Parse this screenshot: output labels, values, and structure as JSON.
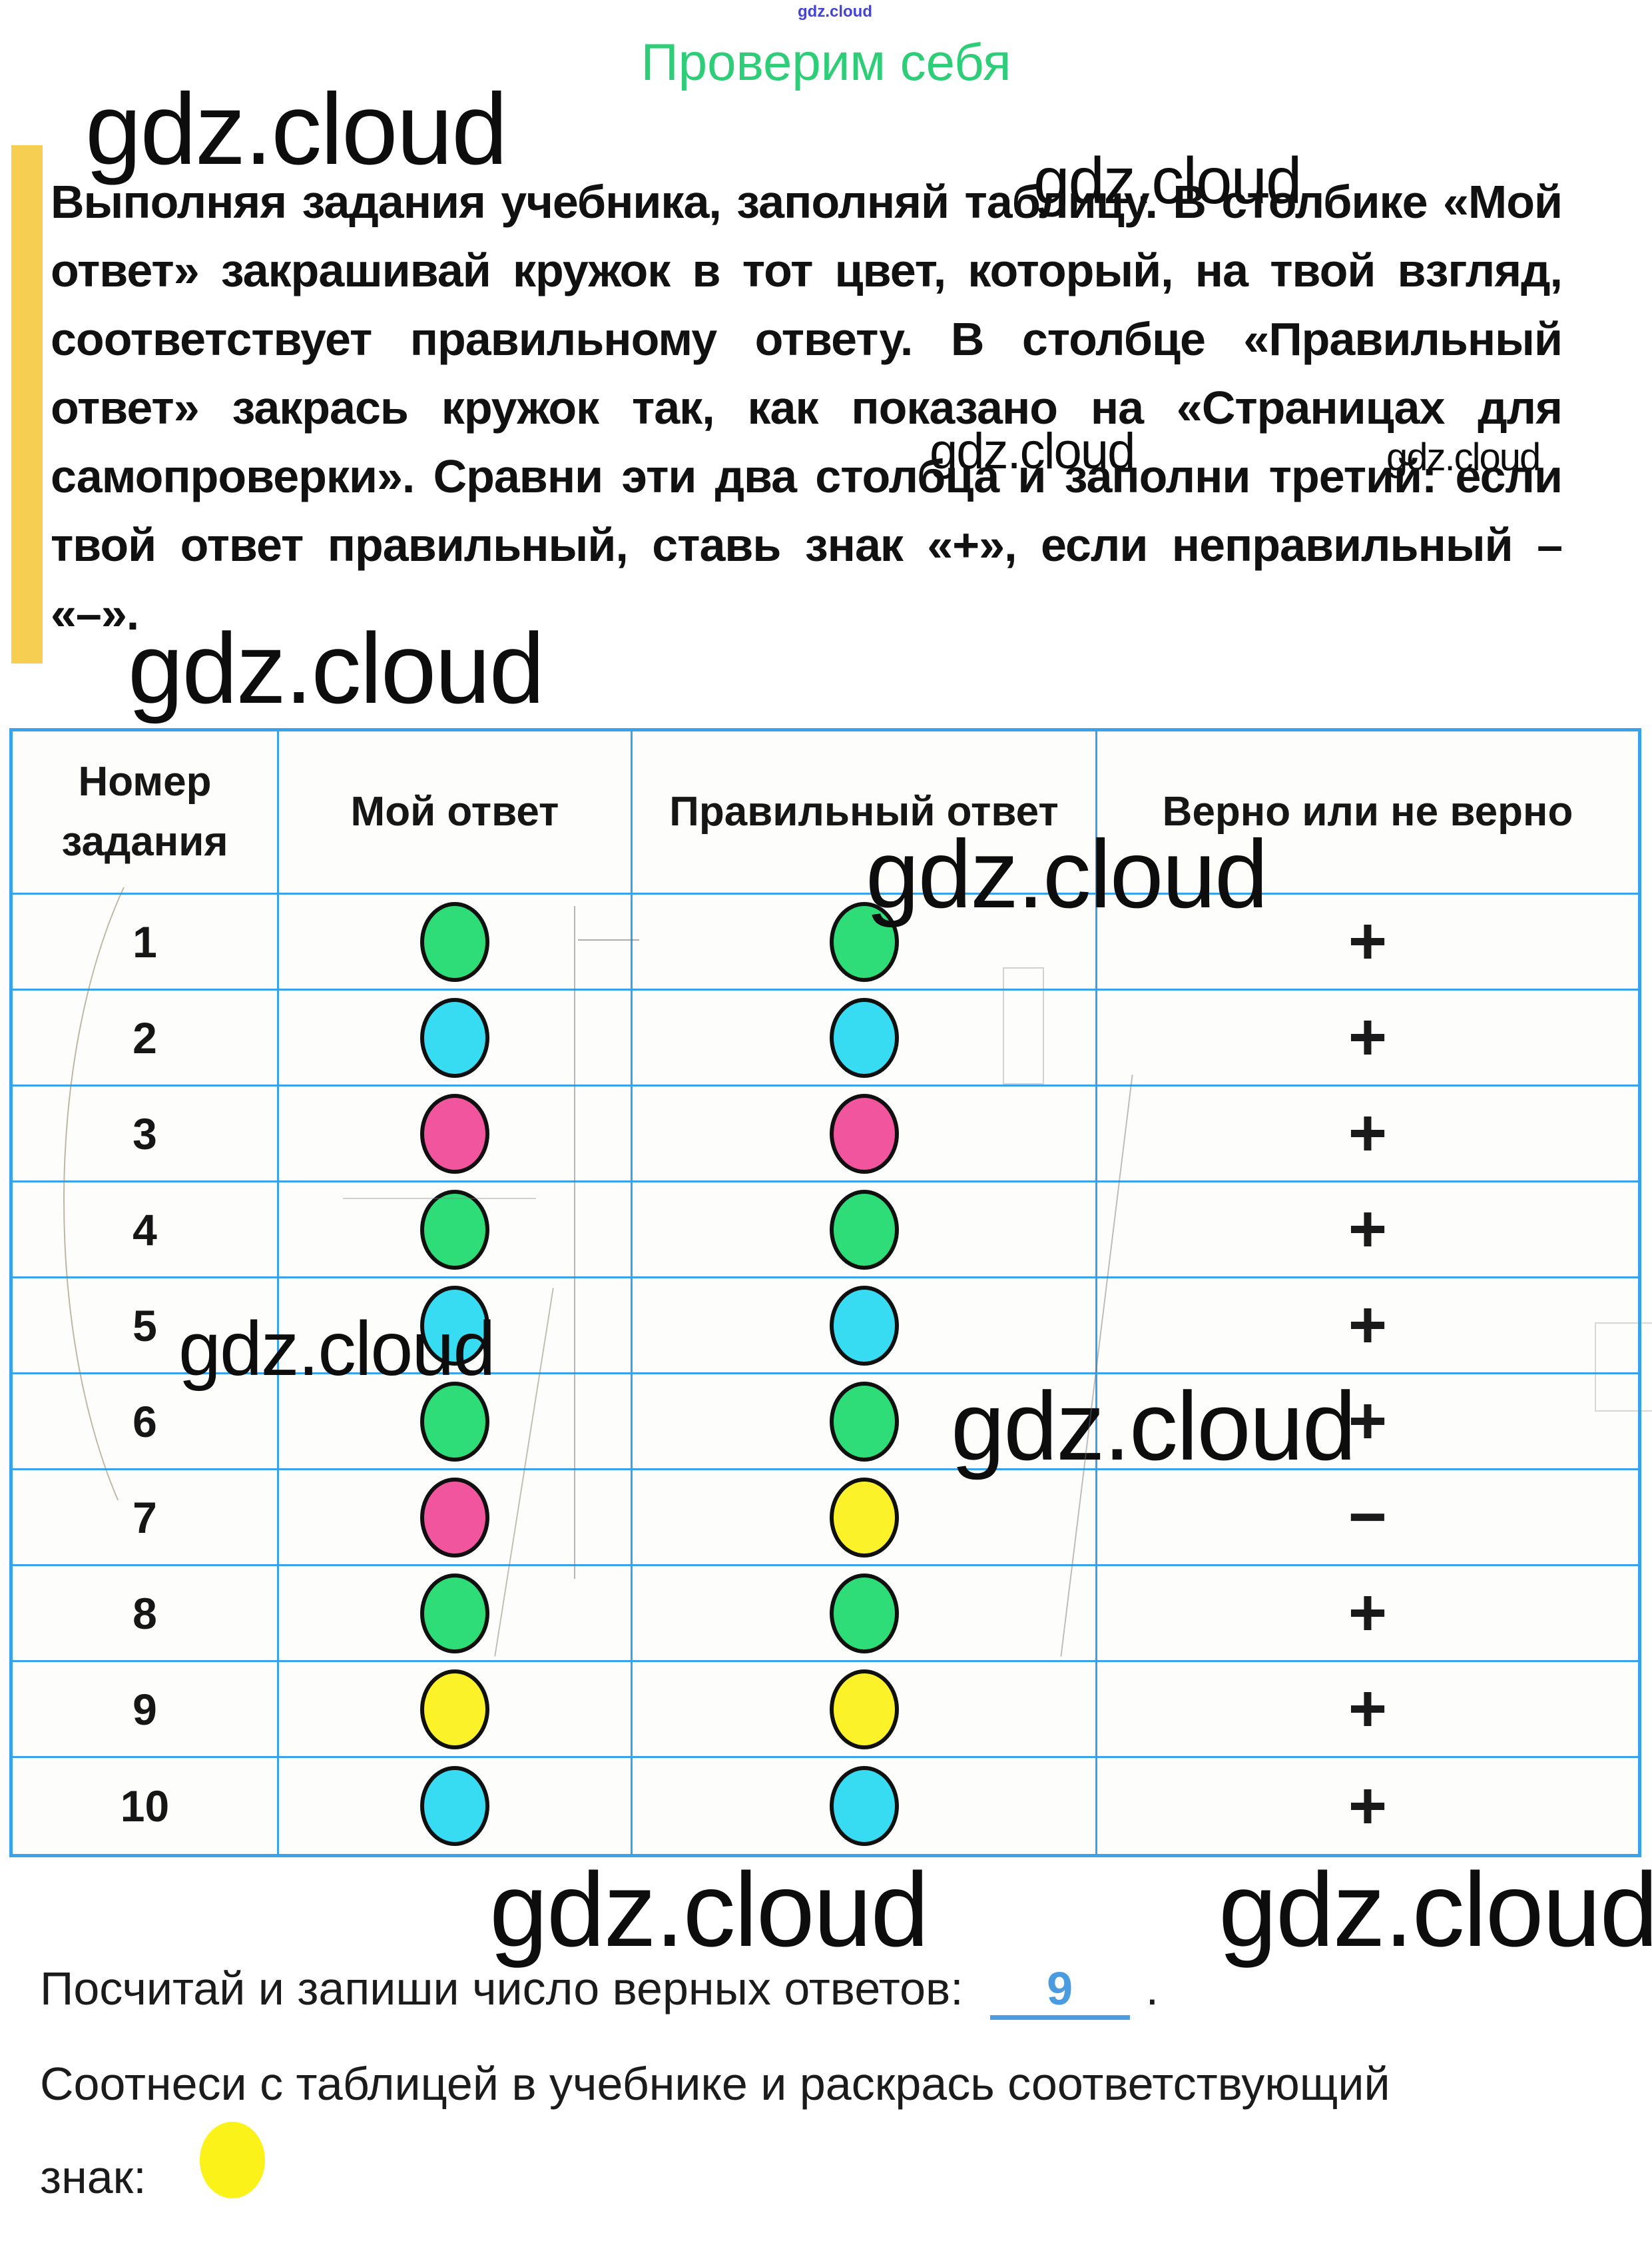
{
  "watermarks": {
    "brand": "gdz.cloud"
  },
  "title": "Проверим себя",
  "intro": {
    "lines": [
      "Выполняя задания учебника, заполняй таблицу. В столбике «Мой",
      "ответ» закрашивай кружок в тот цвет, который, на твой взгляд,",
      "соответствует правильному ответу. В столбце «Правильный",
      "ответ» закрась кружок так, как показано на «Страницах для",
      "самопроверки». Сравни эти два столбца и заполни третий: если",
      "твой ответ правильный, ставь знак «+», если неправильный – знак",
      "«–»."
    ]
  },
  "table": {
    "headers": {
      "col1": "Номер задания",
      "col2": "Мой ответ",
      "col3": "Правильный ответ",
      "col4": "Верно или не верно"
    },
    "rows": [
      {
        "num": "1",
        "my": "green",
        "correct": "green",
        "sign": "+"
      },
      {
        "num": "2",
        "my": "cyan",
        "correct": "cyan",
        "sign": "+"
      },
      {
        "num": "3",
        "my": "pink",
        "correct": "pink",
        "sign": "+"
      },
      {
        "num": "4",
        "my": "green",
        "correct": "green",
        "sign": "+"
      },
      {
        "num": "5",
        "my": "cyan",
        "correct": "cyan",
        "sign": "+"
      },
      {
        "num": "6",
        "my": "green",
        "correct": "green",
        "sign": "+"
      },
      {
        "num": "7",
        "my": "pink",
        "correct": "yellow",
        "sign": "−"
      },
      {
        "num": "8",
        "my": "green",
        "correct": "green",
        "sign": "+"
      },
      {
        "num": "9",
        "my": "yellow",
        "correct": "yellow",
        "sign": "+"
      },
      {
        "num": "10",
        "my": "cyan",
        "correct": "cyan",
        "sign": "+"
      }
    ]
  },
  "footer": {
    "count_prefix": "Посчитай и запиши число верных ответов:",
    "count_value": "9",
    "count_suffix": ".",
    "match_line": "Соотнеси с таблицей в учебнике и раскрась соответствующий",
    "sign_label": "знак:",
    "sign_color": "yellow"
  },
  "palette": {
    "green": "#2fdd78",
    "cyan": "#38dcf2",
    "pink": "#f0559d",
    "yellow": "#fbf22a",
    "table_border_blue": "#38a3ea",
    "answer_blue": "#4a9be0",
    "title_green": "#2dce77",
    "sidebar_yellow": "#f6cf52",
    "tiny_watermark_blue": "#4444d4"
  }
}
